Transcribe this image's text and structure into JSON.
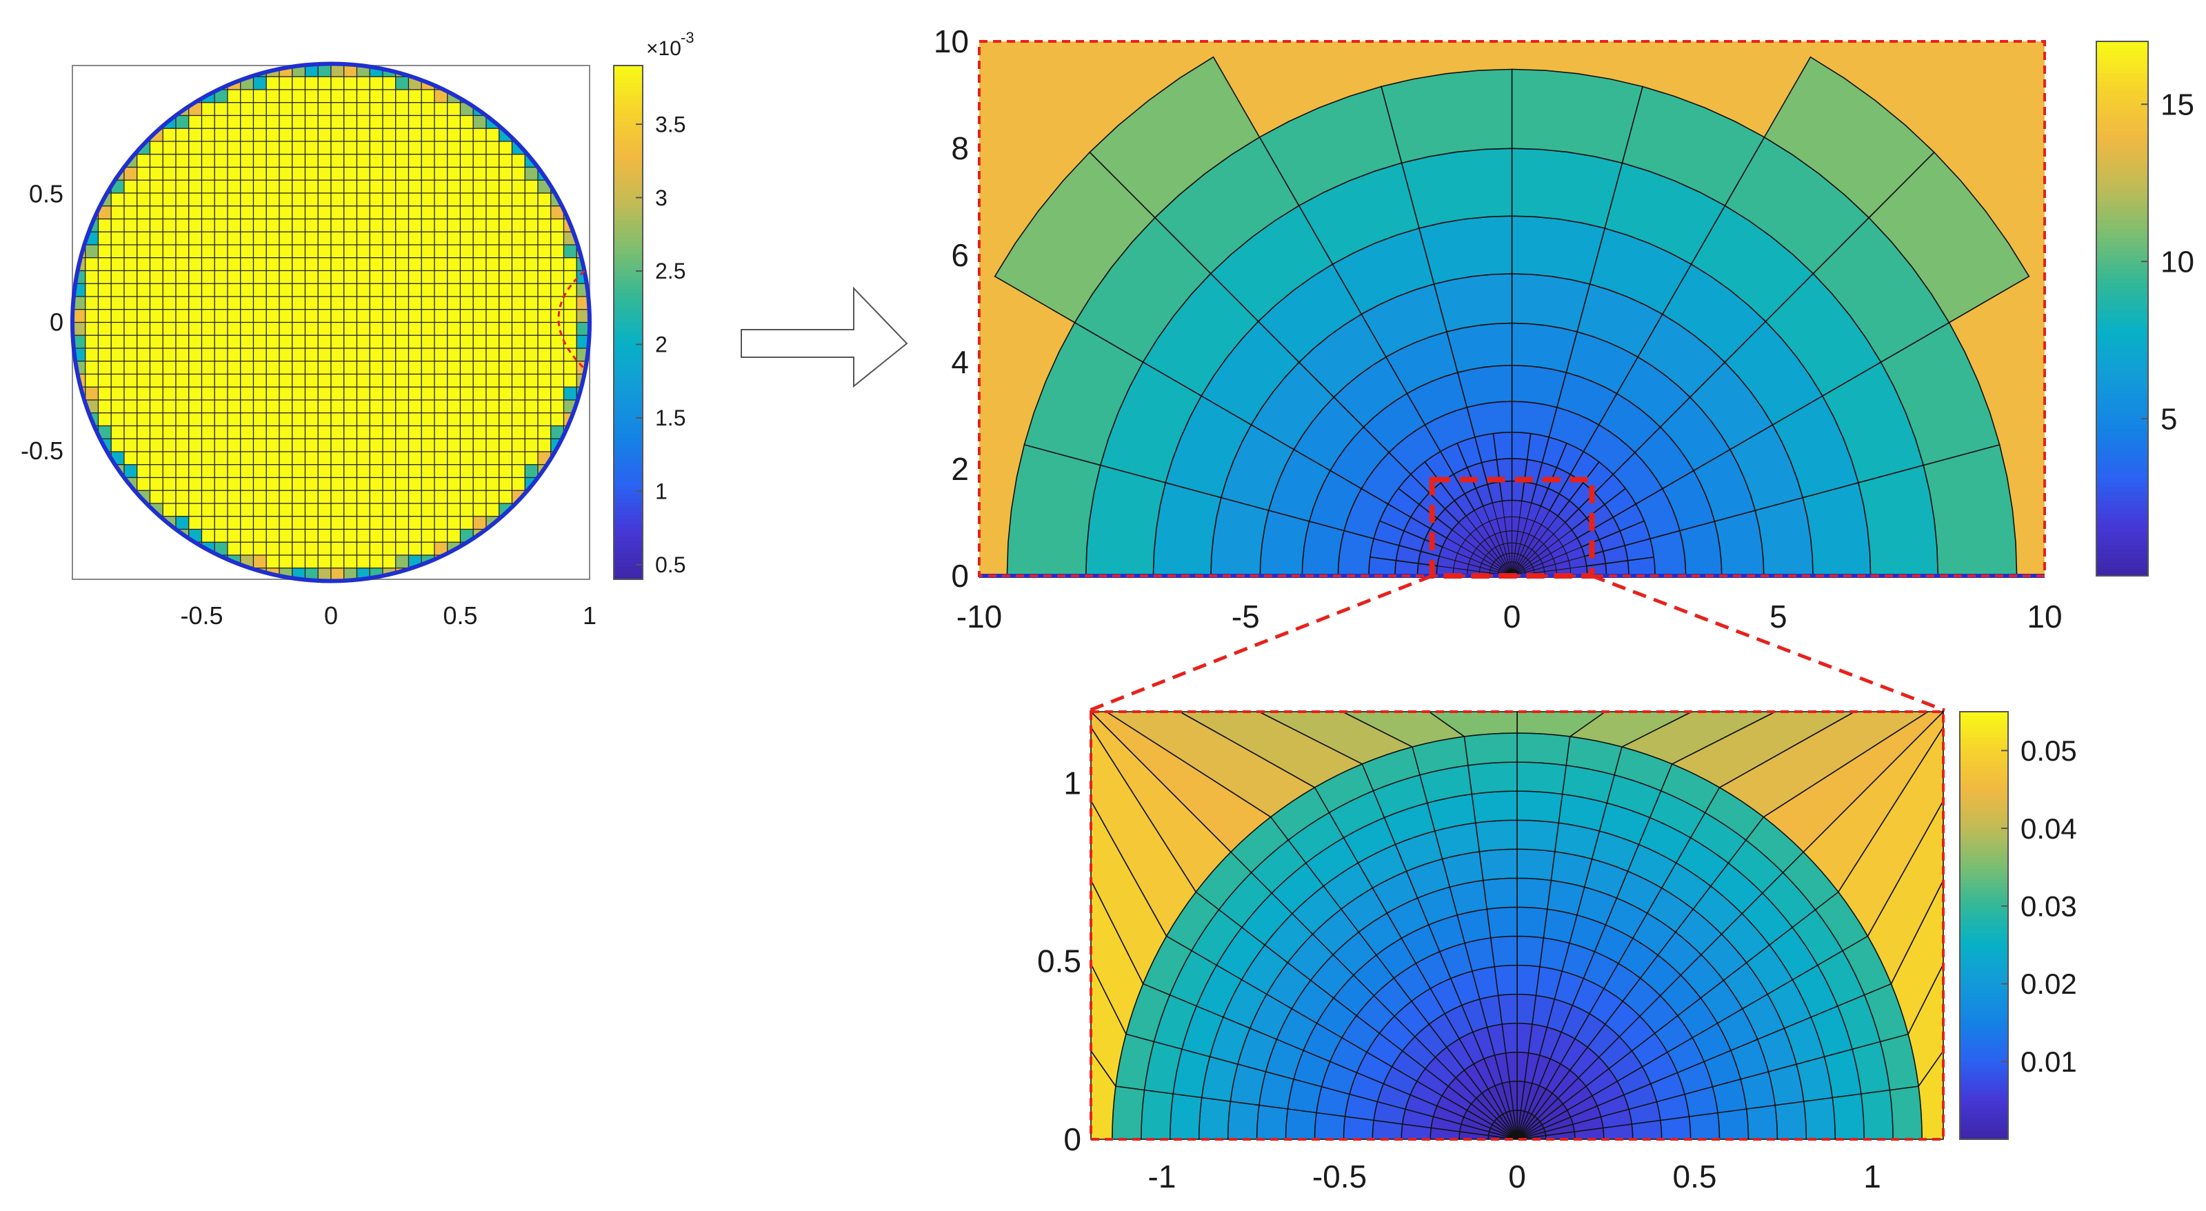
{
  "chart_data": [
    {
      "id": "circle-panel",
      "type": "heatmap",
      "description_shape": "circular domain meshed with square cells",
      "xlim": [
        -1,
        1
      ],
      "ylim": [
        -1,
        1
      ],
      "xticks": [
        "-0.5",
        "0",
        "0.5",
        "1"
      ],
      "xtick_values": [
        -0.5,
        0,
        0.5,
        1
      ],
      "yticks": [
        "0.5",
        "0",
        "-0.5"
      ],
      "ytick_values": [
        0.5,
        0,
        -0.5
      ],
      "colorbar": {
        "min": 0.4,
        "max": 3.9,
        "ticks": [
          "3.5",
          "3",
          "2.5",
          "2",
          "1.5",
          "1",
          "0.5"
        ],
        "tick_values": [
          3.5,
          3,
          2.5,
          2,
          1.5,
          1,
          0.5
        ],
        "exponent_label_base": "×10",
        "exponent_label_power": "-3"
      },
      "grid_divisions": 40
    },
    {
      "id": "half-plane-panel",
      "type": "heatmap",
      "description_shape": "half-plane with semicircular radial mesh",
      "xlim": [
        -10,
        10
      ],
      "ylim": [
        0,
        10
      ],
      "xticks": [
        "-10",
        "-5",
        "0",
        "5",
        "10"
      ],
      "xtick_values": [
        -10,
        -5,
        0,
        5,
        10
      ],
      "yticks": [
        "10",
        "8",
        "6",
        "4",
        "2",
        "0"
      ],
      "ytick_values": [
        10,
        8,
        6,
        4,
        2,
        0
      ],
      "colorbar": {
        "min": 0,
        "max": 17,
        "ticks": [
          "15",
          "10",
          "5"
        ],
        "tick_values": [
          15,
          10,
          5
        ]
      },
      "zoom_box": {
        "x": [
          -1.5,
          1.5
        ],
        "y": [
          0,
          1.8
        ]
      }
    },
    {
      "id": "zoom-panel",
      "type": "heatmap",
      "description_shape": "zoomed semicircular radial mesh",
      "xlim": [
        -1.2,
        1.2
      ],
      "ylim": [
        0,
        1.2
      ],
      "xticks": [
        "-1",
        "-0.5",
        "0",
        "0.5",
        "1"
      ],
      "xtick_values": [
        -1,
        -0.5,
        0,
        0.5,
        1
      ],
      "yticks": [
        "1",
        "0.5",
        "0"
      ],
      "ytick_values": [
        1,
        0.5,
        0
      ],
      "colorbar": {
        "min": 0,
        "max": 0.055,
        "ticks": [
          "0.05",
          "0.04",
          "0.03",
          "0.02",
          "0.01"
        ],
        "tick_values": [
          0.05,
          0.04,
          0.03,
          0.02,
          0.01
        ]
      }
    }
  ],
  "colors": {
    "colormap": [
      "#3e26a8",
      "#4538d7",
      "#2a63f2",
      "#1483e4",
      "#139ad9",
      "#08b0c6",
      "#33b897",
      "#7bbe70",
      "#c2bb55",
      "#f1b942",
      "#f6d42c",
      "#f9fb15"
    ],
    "zoom_indicator": "#e8211b",
    "boundary_line": "#1f2fd0",
    "mesh_line": "#111111"
  }
}
